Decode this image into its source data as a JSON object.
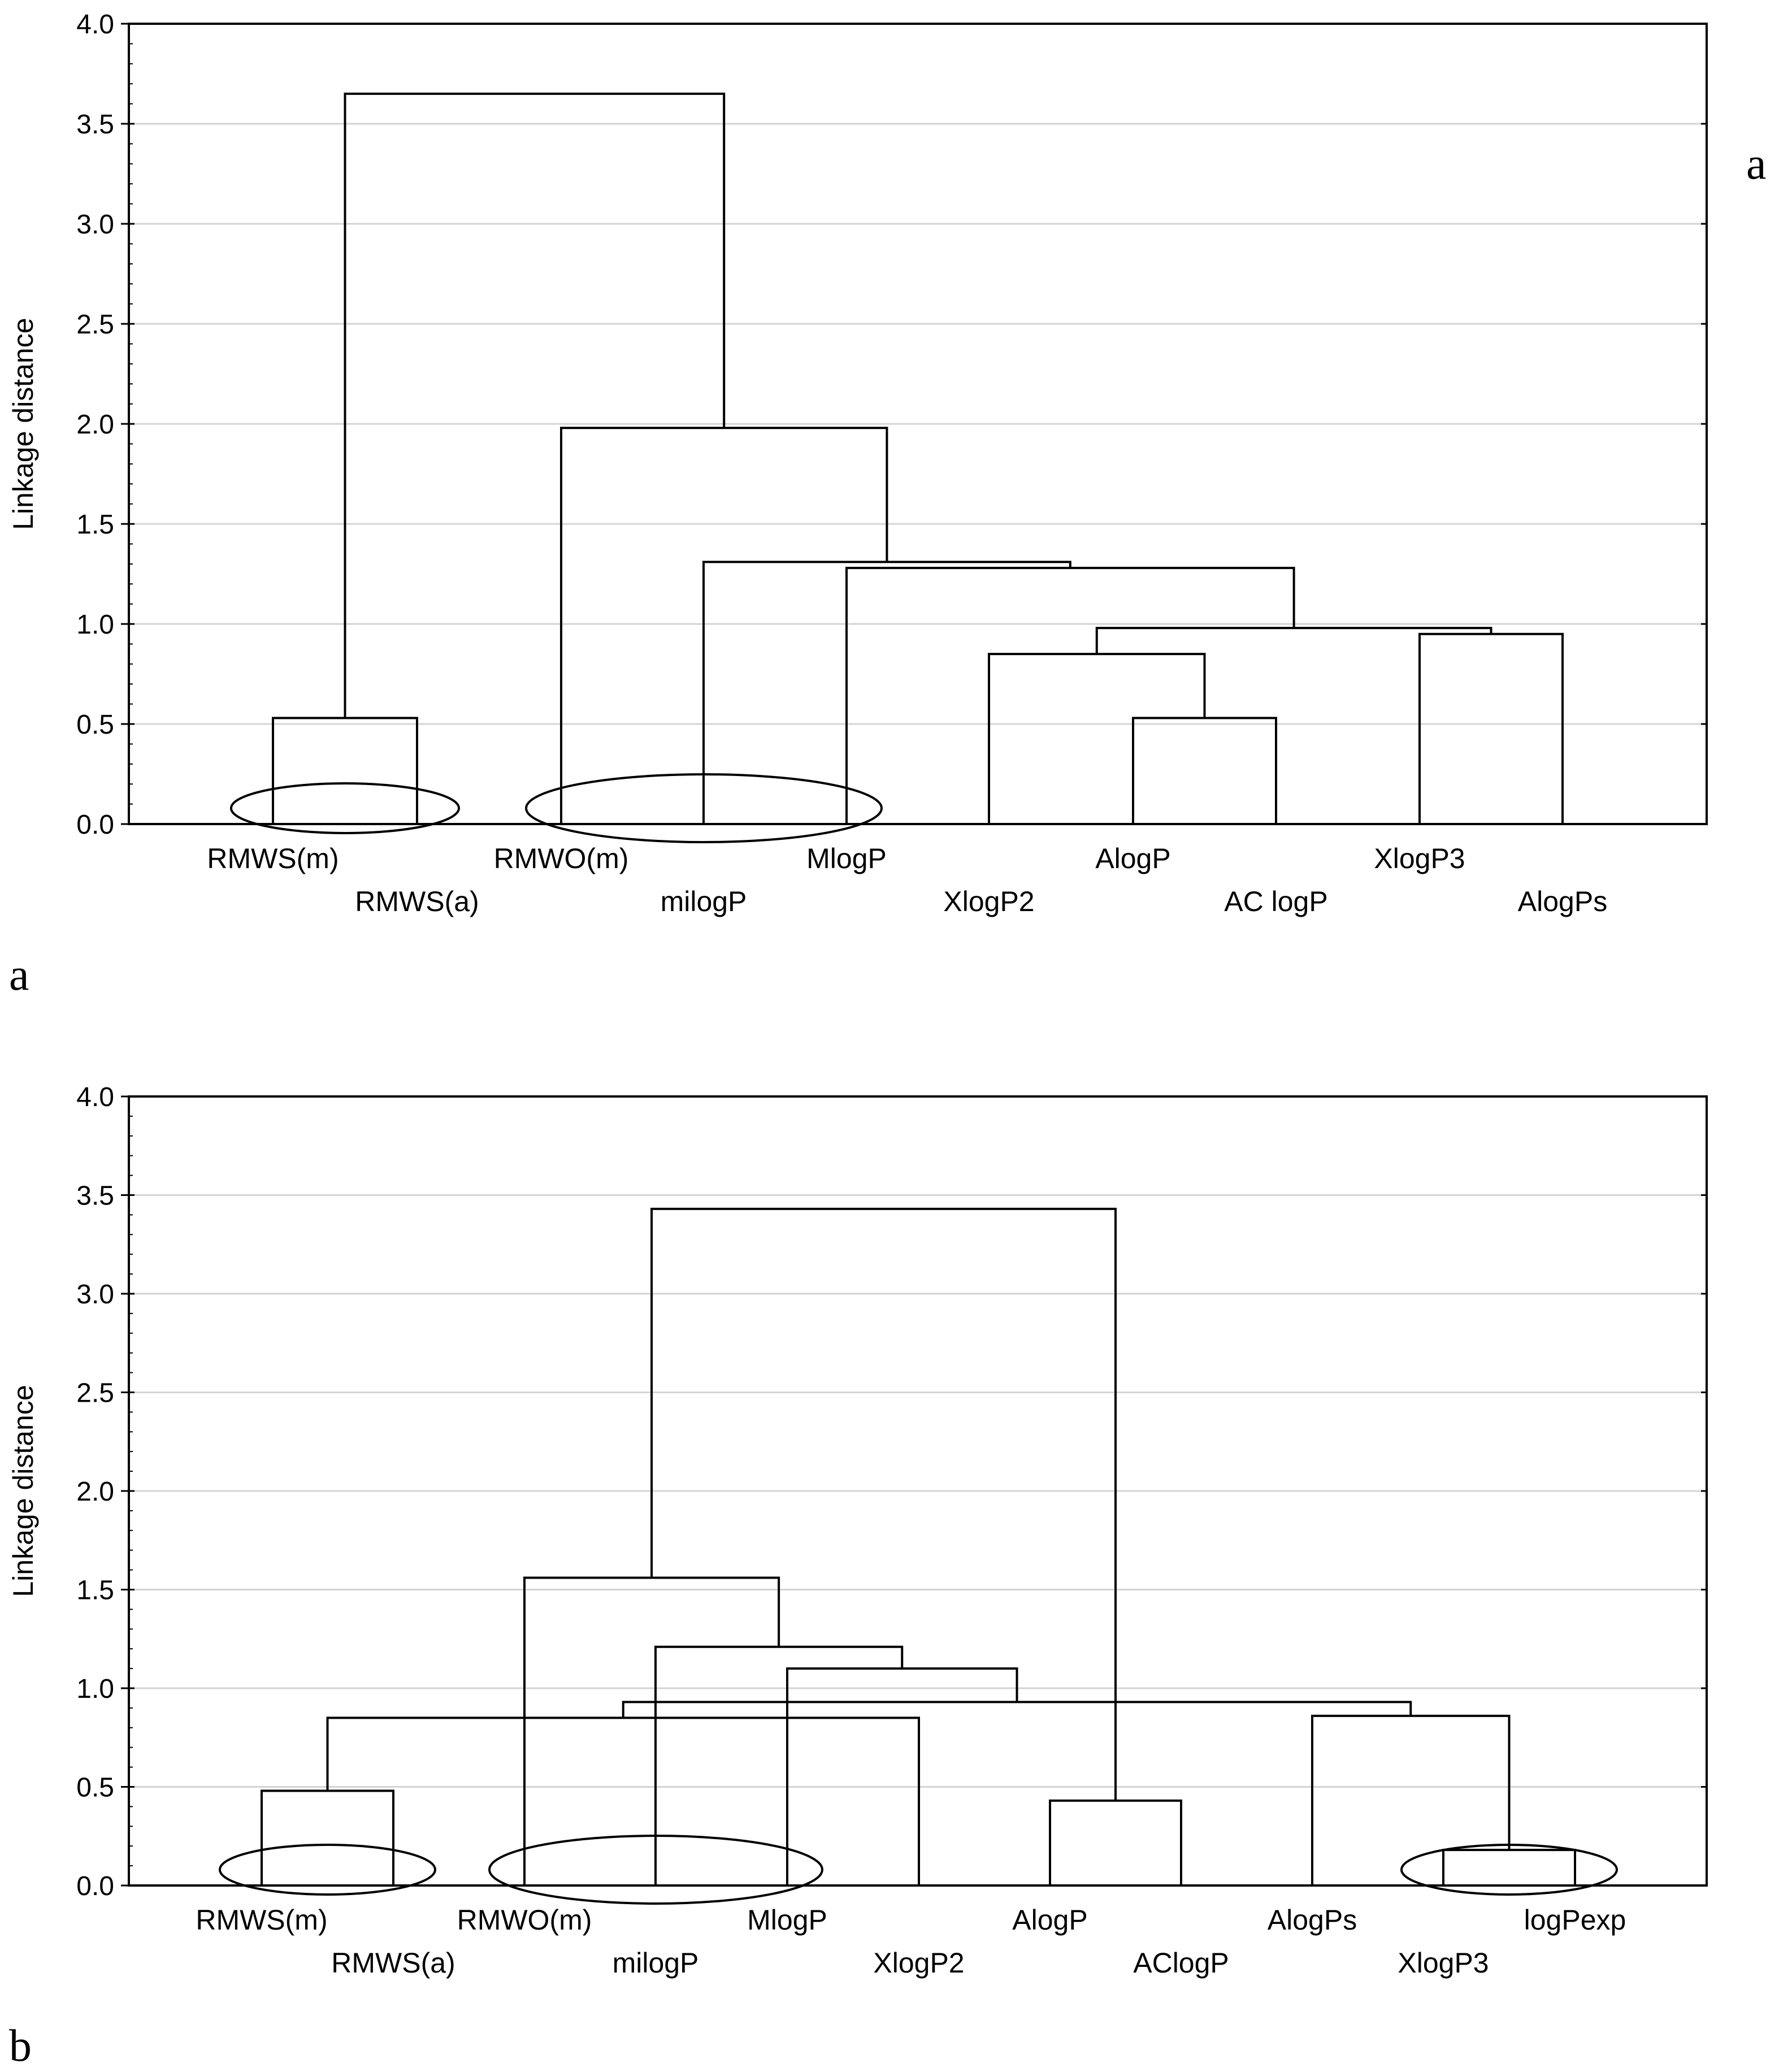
{
  "figure": {
    "panel_a_label": "a",
    "panel_a_side_label": "a",
    "panel_b_label": "b"
  },
  "chart_data": [
    {
      "type": "dendrogram",
      "panel": "a",
      "ylabel": "Linkage distance",
      "ylim": [
        0,
        4.0
      ],
      "yticks": [
        "0.0",
        "0.5",
        "1.0",
        "1.5",
        "2.0",
        "2.5",
        "3.0",
        "3.5",
        "4.0"
      ],
      "grid": true,
      "leaves": [
        {
          "label": "RMWS(m)",
          "row": 0
        },
        {
          "label": "RMWS(a)",
          "row": 1
        },
        {
          "label": "RMWO(m)",
          "row": 0
        },
        {
          "label": "milogP",
          "row": 1
        },
        {
          "label": "MlogP",
          "row": 0
        },
        {
          "label": "XlogP2",
          "row": 1
        },
        {
          "label": "AlogP",
          "row": 0
        },
        {
          "label": "AC logP",
          "row": 1
        },
        {
          "label": "XlogP3",
          "row": 0
        },
        {
          "label": "AlogPs",
          "row": 1
        }
      ],
      "merges": [
        {
          "left": 0,
          "right": 1,
          "height": 0.53
        },
        {
          "left": 6,
          "right": 7,
          "height": 0.53
        },
        {
          "left": 11,
          "right": 5,
          "height": 0.85
        },
        {
          "left": 8,
          "right": 9,
          "height": 0.95
        },
        {
          "left": 12,
          "right": 13,
          "height": 0.98
        },
        {
          "left": 14,
          "right": 4,
          "height": 1.28
        },
        {
          "left": 3,
          "right": 15,
          "height": 1.31
        },
        {
          "left": 2,
          "right": 16,
          "height": 1.98
        },
        {
          "left": 10,
          "right": 17,
          "height": 3.65
        }
      ],
      "ellipses": [
        {
          "leaves": [
            0,
            1
          ]
        },
        {
          "leaves": [
            2,
            3,
            4
          ]
        }
      ]
    },
    {
      "type": "dendrogram",
      "panel": "b",
      "ylabel": "Linkage distance",
      "ylim": [
        0,
        4.0
      ],
      "yticks": [
        "0.0",
        "0.5",
        "1.0",
        "1.5",
        "2.0",
        "2.5",
        "3.0",
        "3.5",
        "4.0"
      ],
      "grid": true,
      "leaves": [
        {
          "label": "RMWS(m)",
          "row": 0
        },
        {
          "label": "RMWS(a)",
          "row": 1
        },
        {
          "label": "RMWO(m)",
          "row": 0
        },
        {
          "label": "milogP",
          "row": 1
        },
        {
          "label": "MlogP",
          "row": 0
        },
        {
          "label": "XlogP2",
          "row": 1
        },
        {
          "label": "AlogP",
          "row": 0
        },
        {
          "label": "AClogP",
          "row": 1
        },
        {
          "label": "AlogPs",
          "row": 0
        },
        {
          "label": "XlogP3",
          "row": 1
        },
        {
          "label": "logPexp",
          "row": 0
        }
      ],
      "merges": [
        {
          "left": 9,
          "right": 10,
          "height": 0.18
        },
        {
          "left": 6,
          "right": 7,
          "height": 0.43
        },
        {
          "left": 0,
          "right": 1,
          "height": 0.48
        },
        {
          "left": 13,
          "right": 5,
          "height": 0.85
        },
        {
          "left": 8,
          "right": 11,
          "height": 0.86
        },
        {
          "left": 14,
          "right": 15,
          "height": 0.93
        },
        {
          "left": 4,
          "right": 16,
          "height": 1.1
        },
        {
          "left": 3,
          "right": 17,
          "height": 1.21
        },
        {
          "left": 2,
          "right": 18,
          "height": 1.56
        },
        {
          "left": 12,
          "right": 19,
          "height": 3.43
        }
      ],
      "ellipses": [
        {
          "leaves": [
            0,
            1
          ]
        },
        {
          "leaves": [
            2,
            3,
            4
          ]
        },
        {
          "leaves": [
            9,
            10
          ]
        }
      ]
    }
  ]
}
